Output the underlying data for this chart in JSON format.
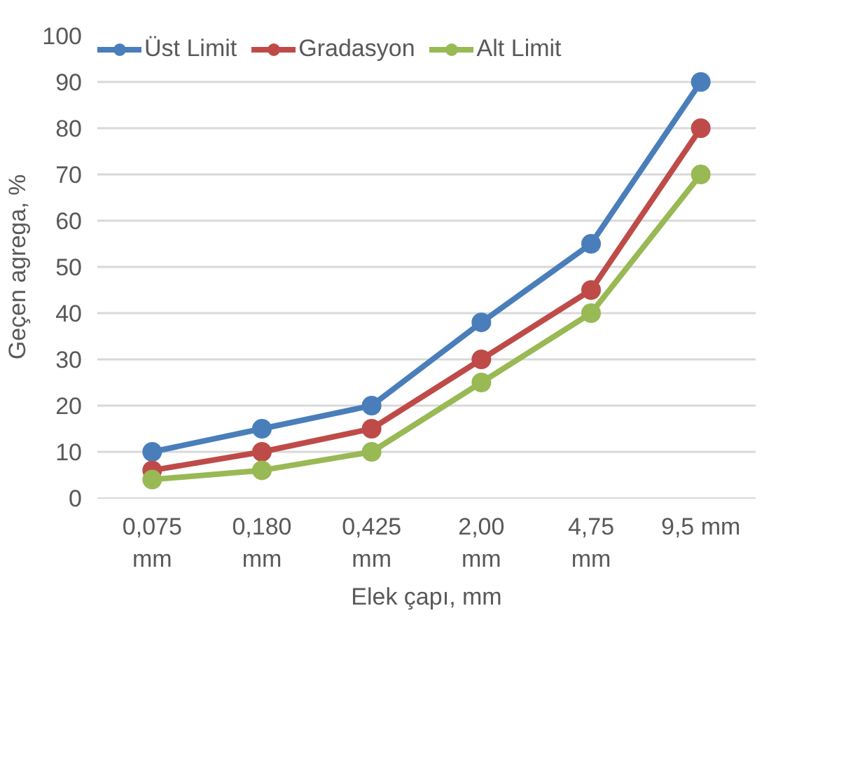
{
  "chart_data": {
    "type": "line",
    "xlabel": "Elek çapı, mm",
    "ylabel": "Geçen agrega, %",
    "categories": [
      "0,075 mm",
      "0,180 mm",
      "0,425 mm",
      "2,00 mm",
      "4,75 mm",
      "9,5 mm"
    ],
    "series": [
      {
        "name": "Üst Limit",
        "color": "#4a7ebb",
        "values": [
          10,
          15,
          20,
          38,
          55,
          90
        ]
      },
      {
        "name": "Gradasyon",
        "color": "#be4b48",
        "values": [
          6,
          10,
          15,
          30,
          45,
          80
        ]
      },
      {
        "name": "Alt Limit",
        "color": "#98b954",
        "values": [
          4,
          6,
          10,
          25,
          40,
          70
        ]
      }
    ],
    "ylim": [
      0,
      100
    ],
    "yticks": [
      0,
      10,
      20,
      30,
      40,
      50,
      60,
      70,
      80,
      90,
      100
    ],
    "grid": "y",
    "legend": "top",
    "marker": "circle",
    "line_style": "solid"
  }
}
